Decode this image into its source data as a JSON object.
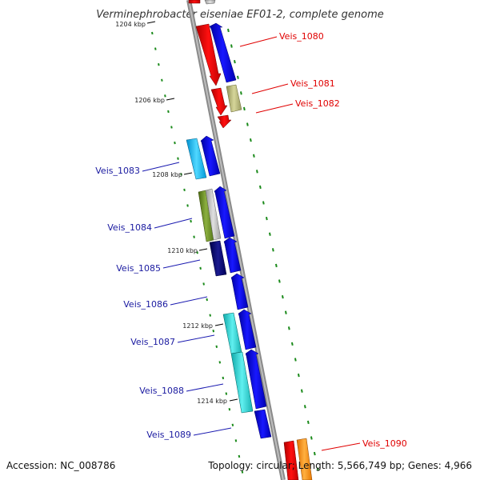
{
  "title": "Verminephrobacter eiseniae EF01-2, complete genome",
  "accession": "Accession: NC_008786",
  "topology": "Topology: circular; Length: 5,566,749 bp; Genes: 4,966",
  "tick_labels": [
    "1204 kbp",
    "1206 kbp",
    "1208 kbp",
    "1210 kbp",
    "1212 kbp",
    "1214 kbp"
  ],
  "genes_plus": [
    {
      "label": "Veis_1080",
      "color": "#e00000"
    },
    {
      "label": "Veis_1081",
      "color": "#e00000"
    },
    {
      "label": "Veis_1082",
      "color": "#e00000"
    },
    {
      "label": "Veis_1090",
      "color": "#e00000"
    }
  ],
  "genes_minus": [
    {
      "label": "Veis_1083",
      "color": "#1a1aa0"
    },
    {
      "label": "Veis_1084",
      "color": "#1a1aa0"
    },
    {
      "label": "Veis_1085",
      "color": "#1a1aa0"
    },
    {
      "label": "Veis_1086",
      "color": "#1a1aa0"
    },
    {
      "label": "Veis_1087",
      "color": "#1a1aa0"
    },
    {
      "label": "Veis_1088",
      "color": "#1a1aa0"
    },
    {
      "label": "Veis_1089",
      "color": "#1a1aa0"
    }
  ],
  "colors": {
    "plus_strand": "#ff0000",
    "minus_strand": "#0000ee",
    "backbone": "#808080",
    "gc_dots": "#1a8a1a"
  }
}
